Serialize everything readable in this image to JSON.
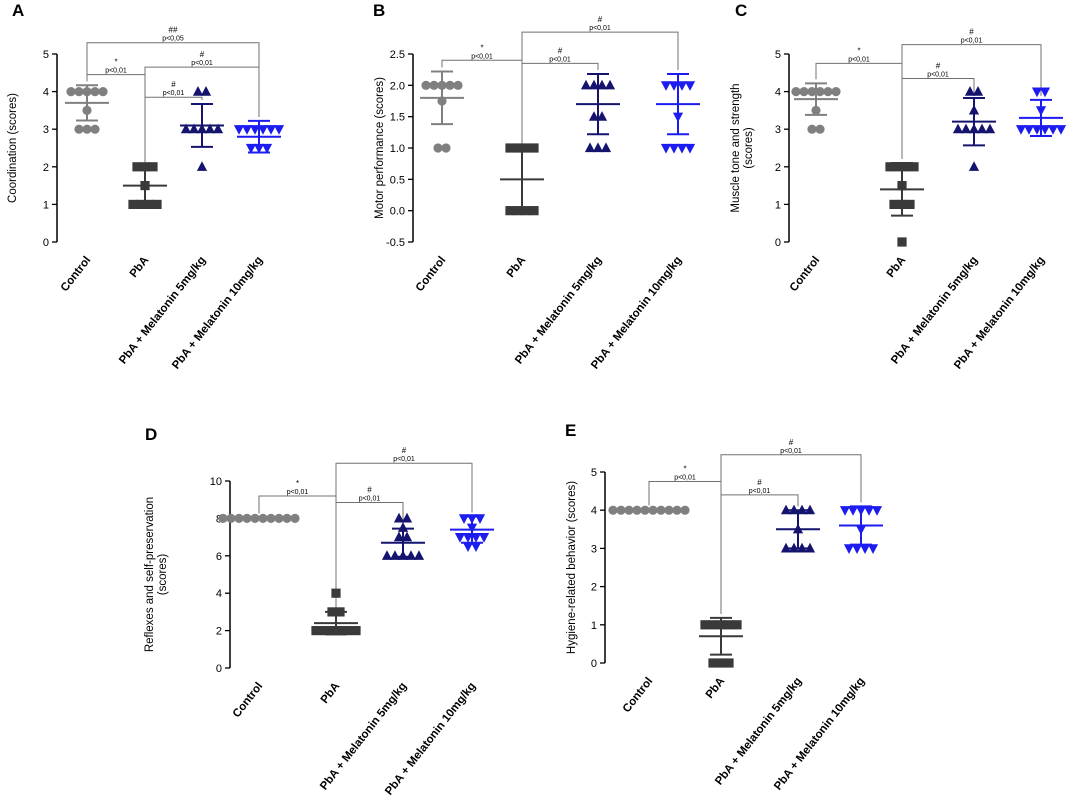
{
  "colors": {
    "control": "#808080",
    "pba": "#3a3a3a",
    "mel5": "#14146e",
    "mel10": "#1c1cf0",
    "axis": "#000000",
    "bracket": "#707070"
  },
  "chart_data": [
    {
      "id": "A",
      "panel_label": "A",
      "type": "scatter",
      "ylabel": [
        "Coordination (scores)"
      ],
      "ylim": [
        0,
        5
      ],
      "yticks": [
        "0",
        "1",
        "2",
        "3",
        "4",
        "5"
      ],
      "categories": [
        "Control",
        "PbA",
        "PbA + Melatonin 5mg/kg",
        "PbA + Melatonin 10mg/kg"
      ],
      "markers": [
        "circle",
        "square",
        "triangle-up",
        "triangle-down"
      ],
      "points": [
        [
          4,
          4,
          4,
          4,
          4,
          3.5,
          3,
          3,
          3
        ],
        [
          2,
          2,
          2,
          1.5,
          1,
          1,
          1,
          1
        ],
        [
          4,
          4,
          3,
          3,
          3,
          3,
          3,
          2
        ],
        [
          3,
          3,
          3,
          3,
          3,
          3,
          2.5,
          2.5,
          2.5
        ]
      ],
      "means": [
        3.7,
        1.5,
        3.1,
        2.8
      ],
      "sd": [
        0.47,
        0.5,
        0.57,
        0.42
      ],
      "comparisons": [
        {
          "from": 0,
          "to": 1,
          "y": 4.45,
          "symbol": "*",
          "label": "p<0,01"
        },
        {
          "from": 2,
          "to": 1,
          "y": 3.85,
          "symbol": "#",
          "label": "p<0,01"
        },
        {
          "from": 3,
          "to": 1,
          "y": 4.65,
          "symbol": "#",
          "label": "p<0,01"
        },
        {
          "from": 0,
          "to": 3,
          "y": 5.3,
          "symbol": "##",
          "label": "p<0,05"
        }
      ]
    },
    {
      "id": "B",
      "panel_label": "B",
      "type": "scatter",
      "ylabel": [
        "Motor performance (scores)"
      ],
      "ylim": [
        -0.5,
        2.5
      ],
      "yticks": [
        "-0.5",
        "0.0",
        "0.5",
        "1.0",
        "1.5",
        "2.0",
        "2.5"
      ],
      "categories": [
        "Control",
        "PbA",
        "PbA + Melatonin 5mg/kg",
        "PbA + Melatonin 10mg/kg"
      ],
      "markers": [
        "circle",
        "square",
        "triangle-up",
        "triangle-down"
      ],
      "points": [
        [
          2,
          2,
          2,
          2,
          2,
          1.75,
          1,
          1
        ],
        [
          1,
          1,
          1,
          1,
          0,
          0,
          0,
          0
        ],
        [
          2,
          2,
          2,
          2,
          1.5,
          1.5,
          1,
          1,
          1
        ],
        [
          2,
          2,
          2,
          2,
          1.5,
          1,
          1,
          1,
          1
        ]
      ],
      "means": [
        1.8,
        0.5,
        1.7,
        1.7
      ],
      "sd": [
        0.42,
        0.5,
        0.48,
        0.48
      ],
      "comparisons": [
        {
          "from": 0,
          "to": 1,
          "y": 2.4,
          "symbol": "*",
          "label": "p<0,01"
        },
        {
          "from": 2,
          "to": 1,
          "y": 2.35,
          "symbol": "#",
          "label": "p<0,01"
        },
        {
          "from": 3,
          "to": 1,
          "y": 2.85,
          "symbol": "#",
          "label": "p<0,01"
        }
      ]
    },
    {
      "id": "C",
      "panel_label": "C",
      "type": "scatter",
      "ylabel": [
        "Muscle tone and strength",
        "(scores)"
      ],
      "ylim": [
        0,
        5
      ],
      "yticks": [
        "0",
        "1",
        "2",
        "3",
        "4",
        "5"
      ],
      "categories": [
        "Control",
        "PbA",
        "PbA + Melatonin 5mg/kg",
        "PbA + Melatonin 10mg/kg"
      ],
      "markers": [
        "circle",
        "square",
        "triangle-up",
        "triangle-down"
      ],
      "points": [
        [
          4,
          4,
          4,
          4,
          4,
          4,
          3.5,
          3,
          3
        ],
        [
          2,
          2,
          2,
          2,
          1.5,
          1,
          1,
          1,
          0
        ],
        [
          4,
          4,
          3.5,
          3,
          3,
          3,
          3,
          3,
          2
        ],
        [
          4,
          4,
          3.5,
          3,
          3,
          3,
          3,
          3,
          3
        ]
      ],
      "means": [
        3.8,
        1.4,
        3.2,
        3.3
      ],
      "sd": [
        0.42,
        0.7,
        0.63,
        0.48
      ],
      "comparisons": [
        {
          "from": 0,
          "to": 1,
          "y": 4.75,
          "symbol": "*",
          "label": "p<0,01"
        },
        {
          "from": 2,
          "to": 1,
          "y": 4.35,
          "symbol": "#",
          "label": "p<0,01"
        },
        {
          "from": 3,
          "to": 1,
          "y": 5.25,
          "symbol": "#",
          "label": "p<0,01"
        }
      ]
    },
    {
      "id": "D",
      "panel_label": "D",
      "type": "scatter",
      "ylabel": [
        "Reflexes and self-preservation",
        "(scores)"
      ],
      "ylim": [
        0,
        10
      ],
      "yticks": [
        "0",
        "2",
        "4",
        "6",
        "8",
        "10"
      ],
      "categories": [
        "Control",
        "PbA",
        "PbA + Melatonin 5mg/kg",
        "PbA + Melatonin 10mg/kg"
      ],
      "markers": [
        "circle",
        "square",
        "triangle-up",
        "triangle-down"
      ],
      "points": [
        [
          8,
          8,
          8,
          8,
          8,
          8,
          8,
          8,
          8,
          8
        ],
        [
          4,
          3,
          3,
          2,
          2,
          2,
          2,
          2,
          2
        ],
        [
          8,
          8,
          7.5,
          7,
          7,
          6,
          6,
          6,
          6,
          6
        ],
        [
          8,
          8,
          8,
          7.5,
          7,
          7,
          7,
          7,
          6.5,
          6.5
        ]
      ],
      "means": [
        8.0,
        2.4,
        6.7,
        7.4
      ],
      "sd": [
        0.05,
        0.6,
        0.75,
        0.7
      ],
      "comparisons": [
        {
          "from": 0,
          "to": 1,
          "y": 9.2,
          "symbol": "*",
          "label": "p<0,01"
        },
        {
          "from": 2,
          "to": 1,
          "y": 8.85,
          "symbol": "#",
          "label": "p<0,01"
        },
        {
          "from": 3,
          "to": 1,
          "y": 10.95,
          "symbol": "#",
          "label": "p<0,01"
        }
      ]
    },
    {
      "id": "E",
      "panel_label": "E",
      "type": "scatter",
      "ylabel": [
        "Hygiene-related behavior (scores)"
      ],
      "ylim": [
        0,
        5
      ],
      "yticks": [
        "0",
        "1",
        "2",
        "3",
        "4",
        "5"
      ],
      "categories": [
        "Control",
        "PbA",
        "PbA + Melatonin 5mg/kg",
        "PbA + Melatonin 10mg/kg"
      ],
      "markers": [
        "circle",
        "square",
        "triangle-up",
        "triangle-down"
      ],
      "points": [
        [
          4,
          4,
          4,
          4,
          4,
          4,
          4,
          4,
          4,
          4
        ],
        [
          1,
          1,
          1,
          1,
          1,
          0,
          0,
          0
        ],
        [
          4,
          4,
          4,
          4,
          3.5,
          3,
          3,
          3,
          3
        ],
        [
          4,
          4,
          4,
          4,
          4,
          3.5,
          3,
          3,
          3,
          3
        ]
      ],
      "means": [
        4.0,
        0.7,
        3.5,
        3.6
      ],
      "sd": [
        0.02,
        0.48,
        0.5,
        0.5
      ],
      "comparisons": [
        {
          "from": 0,
          "to": 1,
          "y": 4.75,
          "symbol": "*",
          "label": "p<0,01"
        },
        {
          "from": 2,
          "to": 1,
          "y": 4.4,
          "symbol": "#",
          "label": "p<0,01"
        },
        {
          "from": 3,
          "to": 1,
          "y": 5.45,
          "symbol": "#",
          "label": "p<0,01"
        }
      ]
    }
  ]
}
